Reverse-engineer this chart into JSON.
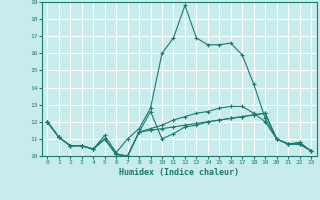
{
  "xlabel": "Humidex (Indice chaleur)",
  "ylabel": "",
  "bg_color": "#c8ecec",
  "grid_color": "#ffffff",
  "line_color": "#1a7a6e",
  "xlim": [
    -0.5,
    23.5
  ],
  "ylim": [
    10,
    19
  ],
  "xticks": [
    0,
    1,
    2,
    3,
    4,
    5,
    6,
    7,
    8,
    9,
    10,
    11,
    12,
    13,
    14,
    15,
    16,
    17,
    18,
    19,
    20,
    21,
    22,
    23
  ],
  "yticks": [
    10,
    11,
    12,
    13,
    14,
    15,
    16,
    17,
    18,
    19
  ],
  "series": [
    [
      12.0,
      11.1,
      10.6,
      10.6,
      10.4,
      11.0,
      10.1,
      10.0,
      11.4,
      12.6,
      11.0,
      11.3,
      11.7,
      11.8,
      12.0,
      12.1,
      12.2,
      12.3,
      12.4,
      12.5,
      11.0,
      10.7,
      10.7,
      10.3
    ],
    [
      12.0,
      11.1,
      10.6,
      10.6,
      10.4,
      11.2,
      10.2,
      11.0,
      11.6,
      12.8,
      16.0,
      16.9,
      18.8,
      16.9,
      16.5,
      16.5,
      16.6,
      15.9,
      14.2,
      12.2,
      11.0,
      10.7,
      10.8,
      10.3
    ],
    [
      12.0,
      11.1,
      10.6,
      10.6,
      10.4,
      11.0,
      10.1,
      10.0,
      11.4,
      11.6,
      11.8,
      12.1,
      12.3,
      12.5,
      12.6,
      12.8,
      12.9,
      12.9,
      12.5,
      12.0,
      11.0,
      10.7,
      10.7,
      10.3
    ],
    [
      12.0,
      11.1,
      10.6,
      10.6,
      10.4,
      11.0,
      10.1,
      10.0,
      11.4,
      11.5,
      11.6,
      11.7,
      11.8,
      11.9,
      12.0,
      12.1,
      12.2,
      12.3,
      12.4,
      12.5,
      11.0,
      10.7,
      10.7,
      10.3
    ]
  ]
}
